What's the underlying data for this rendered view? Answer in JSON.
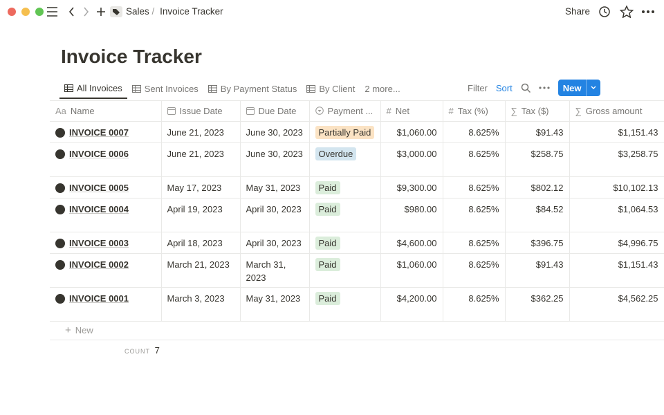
{
  "breadcrumb": {
    "parent": "Sales",
    "separator": "/",
    "current": "Invoice Tracker"
  },
  "topbar": {
    "share": "Share"
  },
  "title": "Invoice Tracker",
  "views": [
    "All Invoices",
    "Sent Invoices",
    "By Payment Status",
    "By Client"
  ],
  "more_views": "2 more...",
  "toolbar": {
    "filter": "Filter",
    "sort": "Sort",
    "new": "New"
  },
  "table": {
    "columns": [
      {
        "icon": "Aa",
        "label": "Name"
      },
      {
        "label": "Issue Date"
      },
      {
        "label": "Due Date"
      },
      {
        "label": "Payment ..."
      },
      {
        "icon": "#",
        "label": "Net"
      },
      {
        "icon": "#",
        "label": "Tax (%)"
      },
      {
        "icon": "∑",
        "label": "Tax ($)"
      },
      {
        "icon": "∑",
        "label": "Gross amount"
      }
    ],
    "rows": [
      [
        "INVOICE 0007",
        "June 21, 2023",
        "June 30, 2023",
        {
          "label": "Partially Paid",
          "color": "#fbe3c4"
        },
        "$1,060.00",
        "8.625%",
        "$91.43",
        "$1,151.43"
      ],
      [
        "INVOICE 0006",
        "June 21, 2023",
        "June 30, 2023",
        {
          "label": "Overdue",
          "color": "#d3e5ef"
        },
        "$3,000.00",
        "8.625%",
        "$258.75",
        "$3,258.75"
      ],
      [
        "INVOICE 0005",
        "May 17, 2023",
        "May 31, 2023",
        {
          "label": "Paid",
          "color": "#dbeddb"
        },
        "$9,300.00",
        "8.625%",
        "$802.12",
        "$10,102.13"
      ],
      [
        "INVOICE 0004",
        "April 19, 2023",
        "April 30, 2023",
        {
          "label": "Paid",
          "color": "#dbeddb"
        },
        "$980.00",
        "8.625%",
        "$84.52",
        "$1,064.53"
      ],
      [
        "INVOICE 0003",
        "April 18, 2023",
        "April 30, 2023",
        {
          "label": "Paid",
          "color": "#dbeddb"
        },
        "$4,600.00",
        "8.625%",
        "$396.75",
        "$4,996.75"
      ],
      [
        "INVOICE 0002",
        "March 21, 2023",
        "March 31, 2023",
        {
          "label": "Paid",
          "color": "#dbeddb"
        },
        "$1,060.00",
        "8.625%",
        "$91.43",
        "$1,151.43"
      ],
      [
        "INVOICE 0001",
        "March 3, 2023",
        "May 31, 2023",
        {
          "label": "Paid",
          "color": "#dbeddb"
        },
        "$4,200.00",
        "8.625%",
        "$362.25",
        "$4,562.25"
      ]
    ]
  },
  "new_row": "New",
  "count_label": "COUNT",
  "count": 7
}
